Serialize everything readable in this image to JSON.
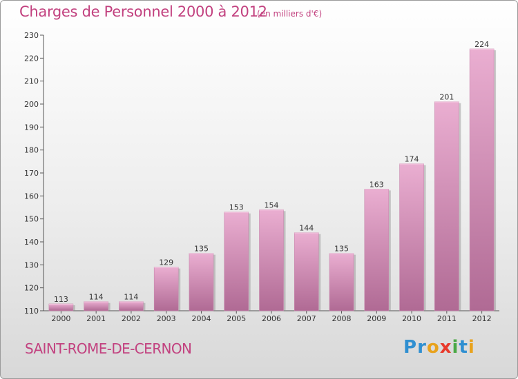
{
  "title": "Charges de Personnel 2000 à 2012",
  "subtitle": "(en milliers d'€)",
  "commune": "SAINT-ROME-DE-CERNON",
  "logo": {
    "letters": [
      "P",
      "r",
      "o",
      "x",
      "i",
      "t",
      "i"
    ],
    "colors": [
      "#2f8fd1",
      "#2f8fd1",
      "#e8a21c",
      "#e83a2c",
      "#4aa845",
      "#2f8fd1",
      "#e8a21c"
    ]
  },
  "colors": {
    "accent": "#c2417f",
    "bar_light": "#e9a9ce",
    "bar_dark": "#b36e98",
    "bar_shadow": "#8a8a8a"
  },
  "chart_data": {
    "type": "bar",
    "categories": [
      "2000",
      "2001",
      "2002",
      "2003",
      "2004",
      "2005",
      "2006",
      "2007",
      "2008",
      "2009",
      "2010",
      "2011",
      "2012"
    ],
    "values": [
      113,
      114,
      114,
      129,
      135,
      153,
      154,
      144,
      135,
      163,
      174,
      201,
      224
    ],
    "data_labels": [
      "113",
      "114",
      "114",
      "129",
      "135",
      "153",
      "154",
      "144",
      "135",
      "163",
      "174",
      "201",
      "224"
    ],
    "ylim": [
      110,
      230
    ],
    "yticks": [
      110,
      120,
      130,
      140,
      150,
      160,
      170,
      180,
      190,
      200,
      210,
      220,
      230
    ],
    "grid": false
  }
}
